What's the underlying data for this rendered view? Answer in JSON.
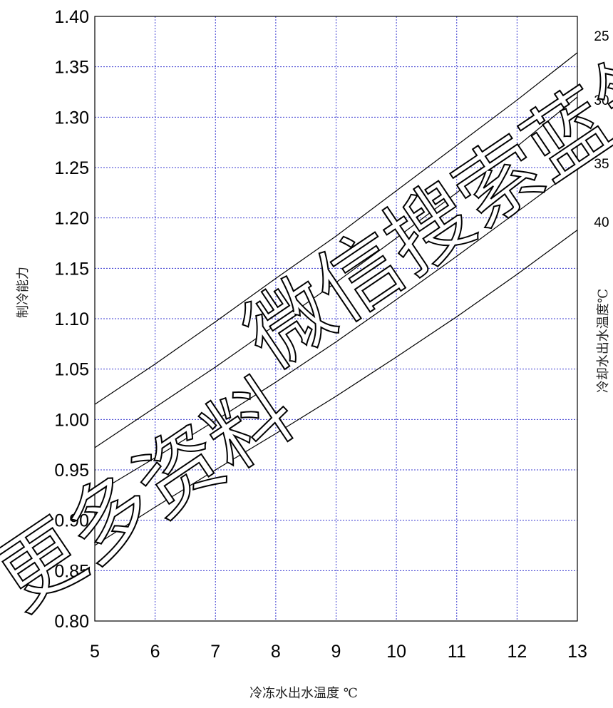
{
  "chart_data": {
    "type": "line",
    "title": "",
    "xlabel": "冷冻水出水温度 ℃",
    "ylabel": "制冷能力",
    "legend_title": "冷却水出水温度℃",
    "xlim": [
      5,
      13
    ],
    "ylim": [
      0.8,
      1.4
    ],
    "x_ticks": [
      "5",
      "6",
      "7",
      "8",
      "9",
      "10",
      "11",
      "12",
      "13"
    ],
    "y_ticks": [
      "1.40",
      "1.35",
      "1.30",
      "1.25",
      "1.20",
      "1.15",
      "1.10",
      "1.05",
      "1.00",
      "0.95",
      "0.90",
      "0.85",
      "0.80"
    ],
    "grid": true,
    "x": [
      5,
      6,
      7,
      8,
      9,
      10,
      11,
      12,
      13
    ],
    "series": [
      {
        "name": "25",
        "values": [
          1.015,
          1.055,
          1.097,
          1.14,
          1.182,
          1.227,
          1.272,
          1.317,
          1.364
        ]
      },
      {
        "name": "30",
        "values": [
          0.972,
          1.012,
          1.052,
          1.094,
          1.136,
          1.18,
          1.225,
          1.271,
          1.32
        ]
      },
      {
        "name": "35",
        "values": [
          0.926,
          0.962,
          0.999,
          1.037,
          1.077,
          1.119,
          1.162,
          1.206,
          1.25
        ]
      },
      {
        "name": "40",
        "values": [
          0.875,
          0.913,
          0.95,
          0.986,
          1.023,
          1.062,
          1.102,
          1.144,
          1.188
        ]
      }
    ]
  },
  "watermark": {
    "line1": "更多资料",
    "line2": "微信搜索蓝领"
  }
}
